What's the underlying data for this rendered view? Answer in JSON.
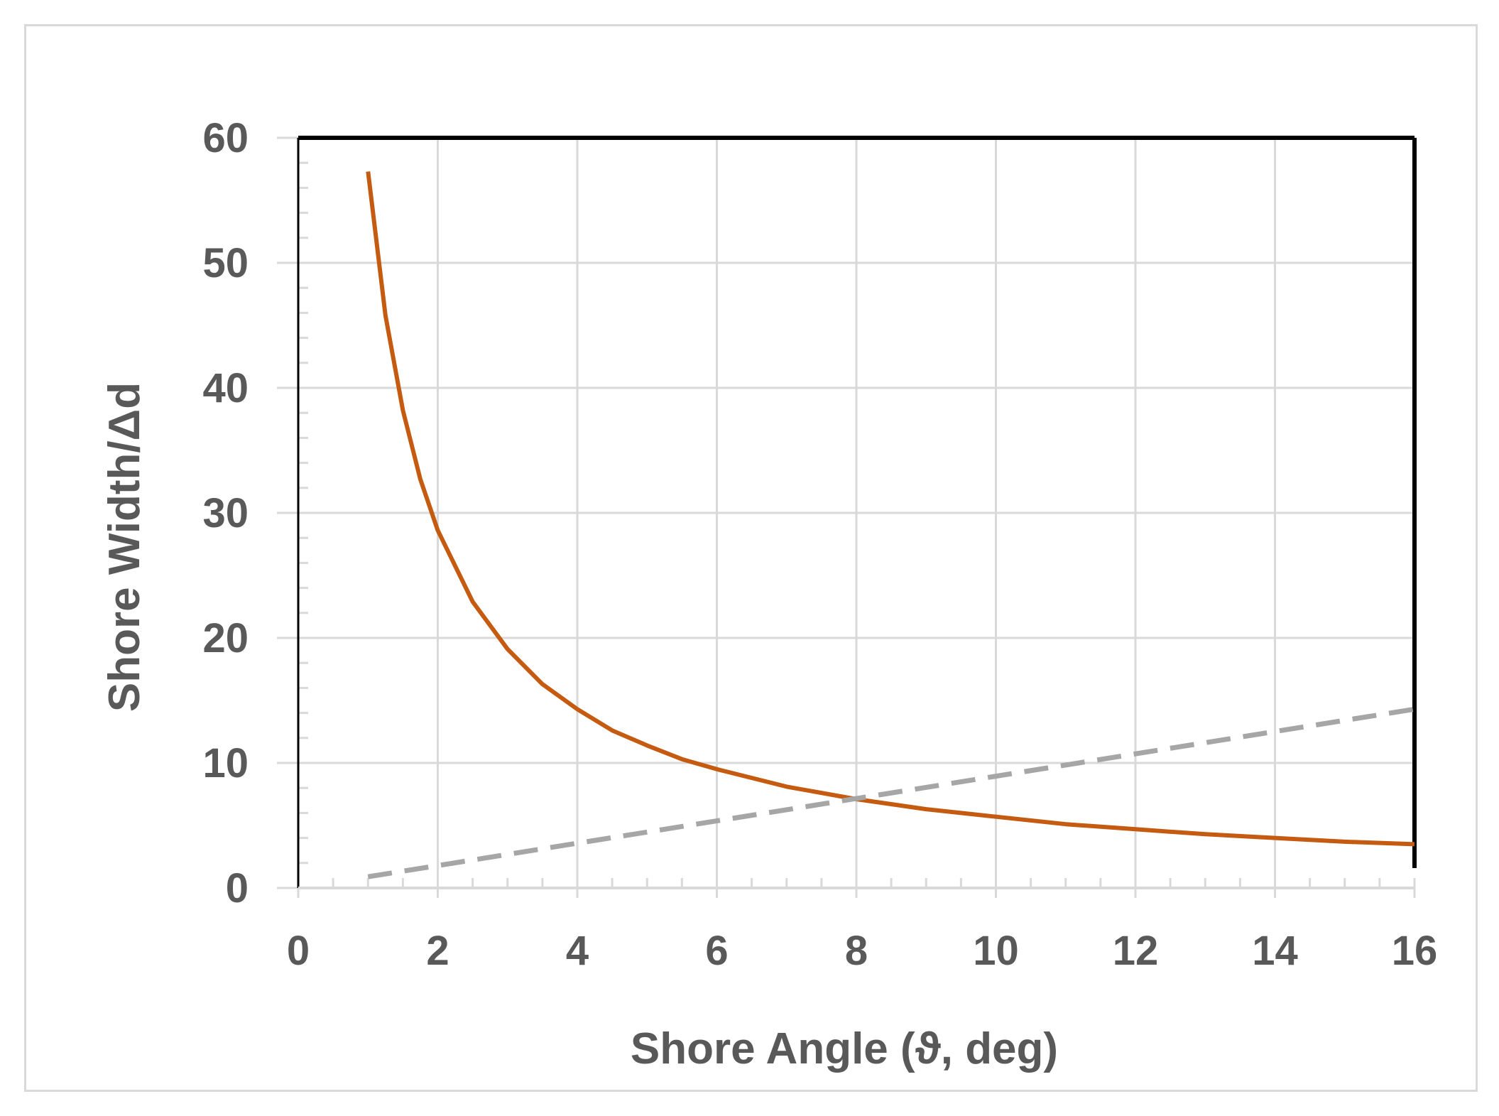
{
  "chart_data": {
    "type": "line",
    "title": "",
    "xlabel": "Shore Angle (ϑ, deg)",
    "ylabel": "Shore Width/Δd",
    "xlim": [
      0,
      16
    ],
    "ylim": [
      0,
      60
    ],
    "x_ticks": [
      "0",
      "2",
      "4",
      "6",
      "8",
      "10",
      "12",
      "14",
      "16"
    ],
    "y_ticks": [
      "0",
      "10",
      "20",
      "30",
      "40",
      "50",
      "60"
    ],
    "grid": true,
    "legend": "none",
    "series": [
      {
        "style": "solid",
        "color": "#c55a11",
        "x": [
          1,
          1.25,
          1.5,
          1.75,
          2,
          2.5,
          3,
          3.5,
          4,
          4.5,
          5,
          5.5,
          6,
          7,
          8,
          9,
          10,
          11,
          12,
          13,
          14,
          15,
          16
        ],
        "y": [
          57.3,
          45.8,
          38.2,
          32.7,
          28.6,
          22.9,
          19.1,
          16.3,
          14.3,
          12.6,
          11.4,
          10.3,
          9.5,
          8.1,
          7.1,
          6.3,
          5.7,
          5.1,
          4.7,
          4.3,
          4.0,
          3.7,
          3.5
        ]
      },
      {
        "style": "dashed",
        "color": "#a6a6a6",
        "x": [
          1,
          16
        ],
        "y": [
          0.9,
          14.3
        ]
      }
    ]
  },
  "colors": {
    "axis_text": "#595959",
    "gridline": "#d9d9d9",
    "plot_border": "#000000",
    "frame_border": "#d9d9d9"
  }
}
